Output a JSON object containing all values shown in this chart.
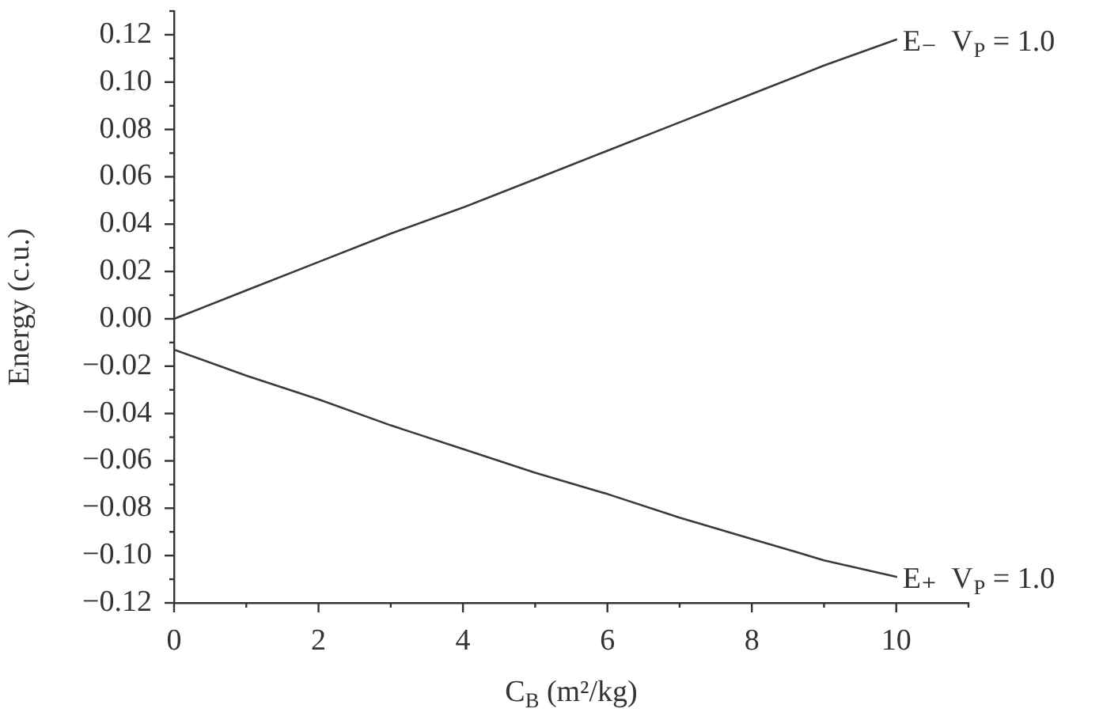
{
  "chart_data": {
    "type": "line",
    "xlabel": "C$_{B}$ (m²/kg)",
    "ylabel": "Energy (c.u.)",
    "x": [
      0,
      1,
      2,
      3,
      4,
      5,
      6,
      7,
      8,
      9,
      10
    ],
    "series": [
      {
        "name": "E₋  V$_{P}$ = 1.0",
        "color": "#3a3a3a",
        "values": [
          0,
          0.012,
          0.024,
          0.036,
          0.047,
          0.059,
          0.071,
          0.083,
          0.095,
          0.107,
          0.118
        ]
      },
      {
        "name": "E₊  V$_{P}$ = 1.0",
        "color": "#3a3a3a",
        "values": [
          -0.013,
          -0.024,
          -0.034,
          -0.045,
          -0.055,
          -0.065,
          -0.074,
          -0.084,
          -0.093,
          -0.102,
          -0.109
        ]
      }
    ],
    "xlim": [
      0,
      11
    ],
    "xticks": [
      0,
      {
        "value": 1,
        "label": null
      },
      2,
      {
        "value": 3,
        "label": null
      },
      4,
      {
        "value": 5,
        "label": null
      },
      6,
      {
        "value": 7,
        "label": null
      },
      8,
      {
        "value": 9,
        "label": null
      },
      10,
      {
        "value": 11,
        "label": null
      }
    ],
    "ylim": [
      -0.12,
      0.13
    ],
    "yticks": [
      {
        "value": -0.12,
        "label": "−0.12"
      },
      {
        "value": -0.11,
        "label": null
      },
      {
        "value": -0.1,
        "label": "−0.10"
      },
      {
        "value": -0.09,
        "label": null
      },
      {
        "value": -0.08,
        "label": "−0.08"
      },
      {
        "value": -0.07,
        "label": null
      },
      {
        "value": -0.06,
        "label": "−0.06"
      },
      {
        "value": -0.05,
        "label": null
      },
      {
        "value": -0.04,
        "label": "−0.04"
      },
      {
        "value": -0.03,
        "label": null
      },
      {
        "value": -0.02,
        "label": "−0.02"
      },
      {
        "value": -0.01,
        "label": null
      },
      {
        "value": 0,
        "label": "0.00"
      },
      {
        "value": 0.01,
        "label": null
      },
      {
        "value": 0.02,
        "label": "0.02"
      },
      {
        "value": 0.03,
        "label": null
      },
      {
        "value": 0.04,
        "label": "0.04"
      },
      {
        "value": 0.05,
        "label": null
      },
      {
        "value": 0.06,
        "label": "0.06"
      },
      {
        "value": 0.07,
        "label": null
      },
      {
        "value": 0.08,
        "label": "0.08"
      },
      {
        "value": 0.09,
        "label": null
      },
      {
        "value": 0.1,
        "label": "0.10"
      },
      {
        "value": 0.11,
        "label": null
      },
      {
        "value": 0.12,
        "label": "0.12"
      },
      {
        "value": 0.13,
        "label": null
      }
    ],
    "legend": false,
    "marker": "none",
    "line_style": "solid"
  }
}
